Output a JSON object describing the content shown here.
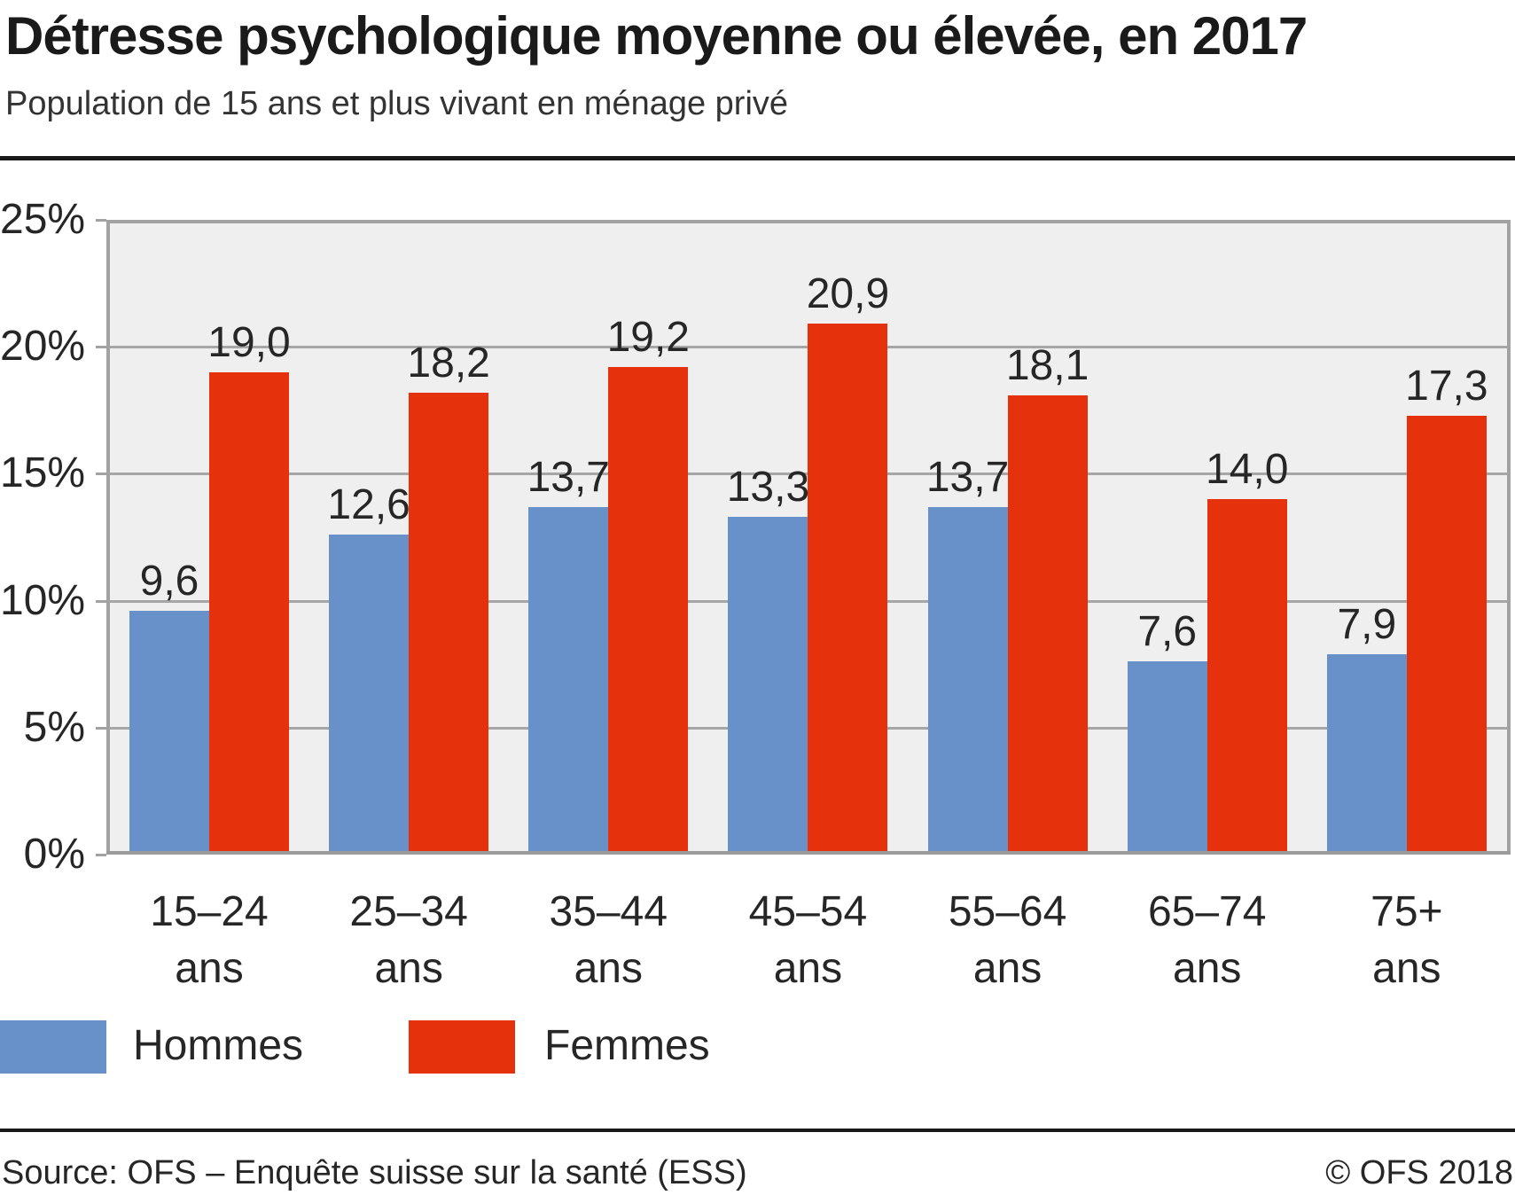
{
  "header": {
    "title": "Détresse psychologique moyenne ou élevée, en 2017",
    "subtitle": "Population de 15 ans et plus vivant en ménage privé"
  },
  "chart_data": {
    "type": "bar",
    "categories": [
      "15–24",
      "25–34",
      "35–44",
      "45–54",
      "55–64",
      "65–74",
      "75+"
    ],
    "category_suffix": "ans",
    "series": [
      {
        "name": "Hommes",
        "color": "#6991c9",
        "values": [
          9.6,
          12.6,
          13.7,
          13.3,
          13.7,
          7.6,
          7.9
        ],
        "labels": [
          "9,6",
          "12,6",
          "13,7",
          "13,3",
          "13,7",
          "7,6",
          "7,9"
        ]
      },
      {
        "name": "Femmes",
        "color": "#e5320c",
        "values": [
          19.0,
          18.2,
          19.2,
          20.9,
          18.1,
          14.0,
          17.3
        ],
        "labels": [
          "19,0",
          "18,2",
          "19,2",
          "20,9",
          "18,1",
          "14,0",
          "17,3"
        ]
      }
    ],
    "y_axis": {
      "min": 0,
      "max": 25,
      "step": 5,
      "tick_labels": [
        "0%",
        "5%",
        "10%",
        "15%",
        "20%",
        "25%"
      ]
    },
    "grid": true,
    "legend_position": "bottom",
    "plot_background": "#efefef",
    "grid_color": "#a6a6a6",
    "value_label_decimal": "comma"
  },
  "legend": {
    "items": [
      {
        "label": "Hommes",
        "color": "#6991c9"
      },
      {
        "label": "Femmes",
        "color": "#e5320c"
      }
    ]
  },
  "footer": {
    "source": "Source: OFS – Enquête suisse sur la santé (ESS)",
    "copyright": "© OFS 2018"
  }
}
